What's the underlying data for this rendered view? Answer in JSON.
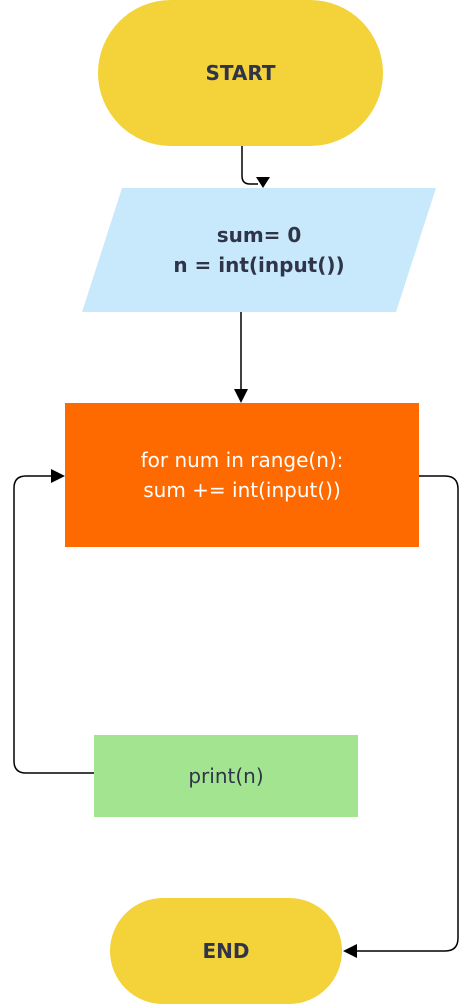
{
  "colors": {
    "terminal": "#f4d23a",
    "io": "#c8e9fb",
    "process": "#ff6a00",
    "output": "#a3e491",
    "connector": "#000000",
    "text_dark": "#2f3448",
    "text_light": "#ffffff"
  },
  "nodes": {
    "start": {
      "label": "START"
    },
    "input": {
      "line1": "sum= 0",
      "line2": "n = int(input())"
    },
    "loop": {
      "line1": "for num in range(n):",
      "line2": "sum += int(input())"
    },
    "output": {
      "label": "print(n)"
    },
    "end": {
      "label": "END"
    }
  }
}
